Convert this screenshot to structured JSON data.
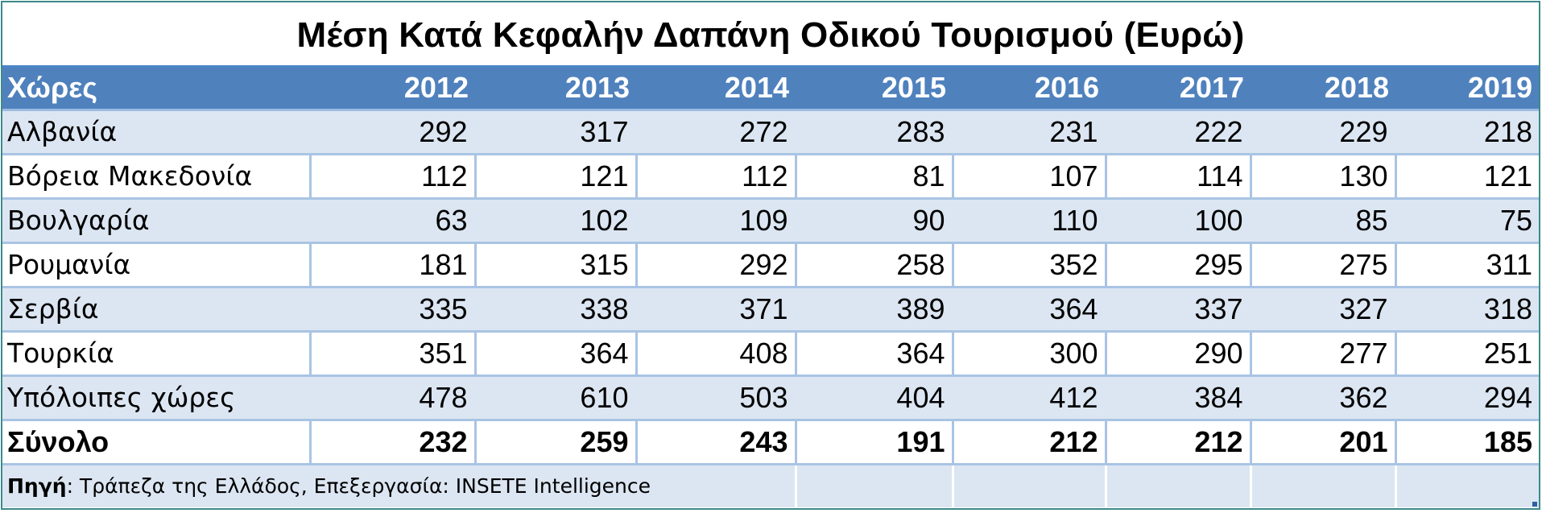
{
  "title": "Μέση Κατά Κεφαλήν Δαπάνη Οδικού Τουρισμού (Ευρώ)",
  "header": {
    "label": "Χώρες",
    "years": [
      "2012",
      "2013",
      "2014",
      "2015",
      "2016",
      "2017",
      "2018",
      "2019"
    ]
  },
  "rows": [
    {
      "country": "Αλβανία",
      "values": [
        "292",
        "317",
        "272",
        "283",
        "231",
        "222",
        "229",
        "218"
      ]
    },
    {
      "country": "Βόρεια Μακεδονία",
      "values": [
        "112",
        "121",
        "112",
        "81",
        "107",
        "114",
        "130",
        "121"
      ]
    },
    {
      "country": "Βουλγαρία",
      "values": [
        "63",
        "102",
        "109",
        "90",
        "110",
        "100",
        "85",
        "75"
      ]
    },
    {
      "country": "Ρουμανία",
      "values": [
        "181",
        "315",
        "292",
        "258",
        "352",
        "295",
        "275",
        "311"
      ]
    },
    {
      "country": "Σερβία",
      "values": [
        "335",
        "338",
        "371",
        "389",
        "364",
        "337",
        "327",
        "318"
      ]
    },
    {
      "country": "Τουρκία",
      "values": [
        "351",
        "364",
        "408",
        "364",
        "300",
        "290",
        "277",
        "251"
      ]
    },
    {
      "country": "Υπόλοιπες χώρες",
      "values": [
        "478",
        "610",
        "503",
        "404",
        "412",
        "384",
        "362",
        "294"
      ]
    }
  ],
  "total": {
    "label": "Σύνολο",
    "values": [
      "232",
      "259",
      "243",
      "191",
      "212",
      "212",
      "201",
      "185"
    ]
  },
  "source": {
    "label": "Πηγή",
    "text": ": Τράπεζα της Ελλάδος, Επεξεργασία: INSETE Intelligence"
  },
  "colors": {
    "header_bg": "#4f81bd",
    "band_bg": "#dce6f2",
    "frame": "#3d8a8c"
  }
}
